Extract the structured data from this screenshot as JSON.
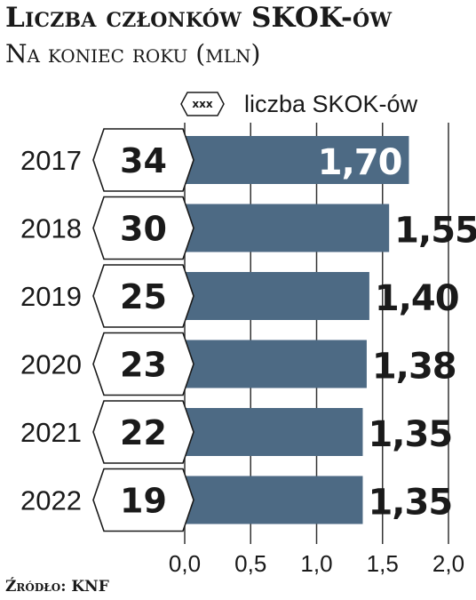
{
  "title": "Liczba członków SKOK-ów",
  "subtitle": "Na koniec roku (mln)",
  "legend": {
    "symbol": "xxx",
    "label": "liczba SKOK-ów"
  },
  "source": "Źródło: KNF",
  "colors": {
    "bar": "#4d6a84",
    "text": "#1a1a1a",
    "grid": "#333333",
    "inner_label": "#ffffff"
  },
  "chart_data": {
    "type": "bar",
    "orientation": "horizontal",
    "title": "Liczba członków SKOK-ów",
    "subtitle": "Na koniec roku (mln)",
    "categories": [
      "2017",
      "2018",
      "2019",
      "2020",
      "2021",
      "2022"
    ],
    "values": [
      1.7,
      1.55,
      1.4,
      1.38,
      1.35,
      1.35
    ],
    "value_labels": [
      "1,70",
      "1,55",
      "1,40",
      "1,38",
      "1,35",
      "1,35"
    ],
    "skok_counts": [
      34,
      30,
      25,
      23,
      22,
      19
    ],
    "xlim": [
      0,
      2.0
    ],
    "xticks": [
      "0,0",
      "0,5",
      "1,0",
      "1,5",
      "2,0"
    ],
    "grid": true
  }
}
